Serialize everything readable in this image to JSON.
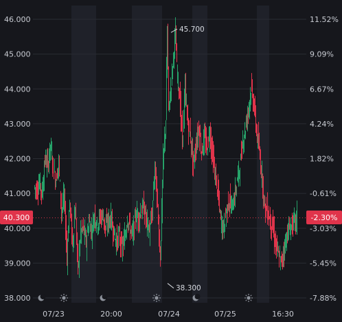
{
  "chart_data": {
    "type": "candlestick",
    "title": "",
    "left_axis": {
      "ticks": [
        "46.000",
        "45.000",
        "44.000",
        "43.000",
        "42.000",
        "41.000",
        "40.000",
        "39.000",
        "38.000"
      ],
      "range": [
        37.8,
        46.2
      ]
    },
    "right_axis": {
      "ticks": [
        "11.52%",
        "9.09%",
        "6.67%",
        "4.24%",
        "1.82%",
        "-0.61%",
        "-3.03%",
        "-5.45%",
        "-7.88%"
      ]
    },
    "x_ticks": [
      "07/23",
      "20:00",
      "07/24",
      "07/25",
      "16:30"
    ],
    "session_icons": [
      "moon",
      "sun",
      "moon",
      "sun",
      "moon",
      "sun"
    ],
    "current_price": {
      "value": 40.3,
      "label": "40.300",
      "change_label": "-2.30%"
    },
    "annotations": [
      {
        "label": "45.700",
        "value": 45.7,
        "kind": "high"
      },
      {
        "label": "38.300",
        "value": 38.3,
        "kind": "low"
      }
    ],
    "colors": {
      "up": "#26a269",
      "down": "#e0344b",
      "bg": "#16171c",
      "night_band": "#1f2129",
      "grid": "#2a2c33",
      "price_badge": "#e0344b"
    },
    "price_path": [
      [
        0,
        41.2
      ],
      [
        4,
        41.1
      ],
      [
        8,
        41.3
      ],
      [
        12,
        41.0
      ],
      [
        16,
        42.0
      ],
      [
        20,
        41.8
      ],
      [
        24,
        42.4
      ],
      [
        28,
        41.7
      ],
      [
        32,
        41.4
      ],
      [
        36,
        41.9
      ],
      [
        40,
        40.5
      ],
      [
        44,
        40.9
      ],
      [
        48,
        39.2
      ],
      [
        52,
        40.8
      ],
      [
        56,
        39.5
      ],
      [
        60,
        40.6
      ],
      [
        64,
        38.8
      ],
      [
        68,
        39.9
      ],
      [
        72,
        40.0
      ],
      [
        76,
        39.6
      ],
      [
        80,
        40.2
      ],
      [
        84,
        39.9
      ],
      [
        88,
        40.4
      ],
      [
        92,
        40.1
      ],
      [
        96,
        40.3
      ],
      [
        100,
        40.4
      ],
      [
        104,
        40.0
      ],
      [
        108,
        40.2
      ],
      [
        112,
        40.3
      ],
      [
        116,
        39.9
      ],
      [
        120,
        39.6
      ],
      [
        124,
        39.8
      ],
      [
        128,
        39.4
      ],
      [
        132,
        39.7
      ],
      [
        136,
        40.3
      ],
      [
        140,
        40.0
      ],
      [
        144,
        39.8
      ],
      [
        148,
        40.4
      ],
      [
        152,
        40.3
      ],
      [
        156,
        40.5
      ],
      [
        160,
        40.6
      ],
      [
        164,
        40.2
      ],
      [
        168,
        39.9
      ],
      [
        172,
        40.4
      ],
      [
        176,
        41.8
      ],
      [
        180,
        40.6
      ],
      [
        184,
        39.1
      ],
      [
        188,
        41.9
      ],
      [
        192,
        43.1
      ],
      [
        194,
        45.7
      ],
      [
        196,
        43.4
      ],
      [
        200,
        44.2
      ],
      [
        204,
        45.2
      ],
      [
        206,
        45.6
      ],
      [
        208,
        44.6
      ],
      [
        212,
        43.8
      ],
      [
        216,
        42.5
      ],
      [
        220,
        44.0
      ],
      [
        224,
        43.0
      ],
      [
        228,
        42.6
      ],
      [
        232,
        41.8
      ],
      [
        236,
        42.4
      ],
      [
        240,
        42.9
      ],
      [
        244,
        42.2
      ],
      [
        248,
        42.6
      ],
      [
        252,
        42.3
      ],
      [
        256,
        42.8
      ],
      [
        260,
        42.1
      ],
      [
        264,
        41.5
      ],
      [
        268,
        41.0
      ],
      [
        272,
        40.2
      ],
      [
        276,
        40.0
      ],
      [
        280,
        40.5
      ],
      [
        284,
        40.8
      ],
      [
        288,
        40.6
      ],
      [
        292,
        40.9
      ],
      [
        296,
        41.4
      ],
      [
        300,
        41.8
      ],
      [
        304,
        42.5
      ],
      [
        308,
        42.9
      ],
      [
        312,
        43.4
      ],
      [
        316,
        44.0
      ],
      [
        320,
        43.6
      ],
      [
        324,
        42.8
      ],
      [
        328,
        42.2
      ],
      [
        332,
        41.5
      ],
      [
        336,
        40.6
      ],
      [
        340,
        40.5
      ],
      [
        344,
        40.2
      ],
      [
        348,
        40.0
      ],
      [
        352,
        39.5
      ],
      [
        356,
        39.2
      ],
      [
        360,
        39.0
      ],
      [
        364,
        39.4
      ],
      [
        368,
        39.8
      ],
      [
        372,
        40.0
      ],
      [
        376,
        40.1
      ],
      [
        380,
        40.2
      ],
      [
        384,
        40.3
      ],
      [
        388,
        40.3
      ],
      [
        392,
        40.3
      ]
    ]
  }
}
